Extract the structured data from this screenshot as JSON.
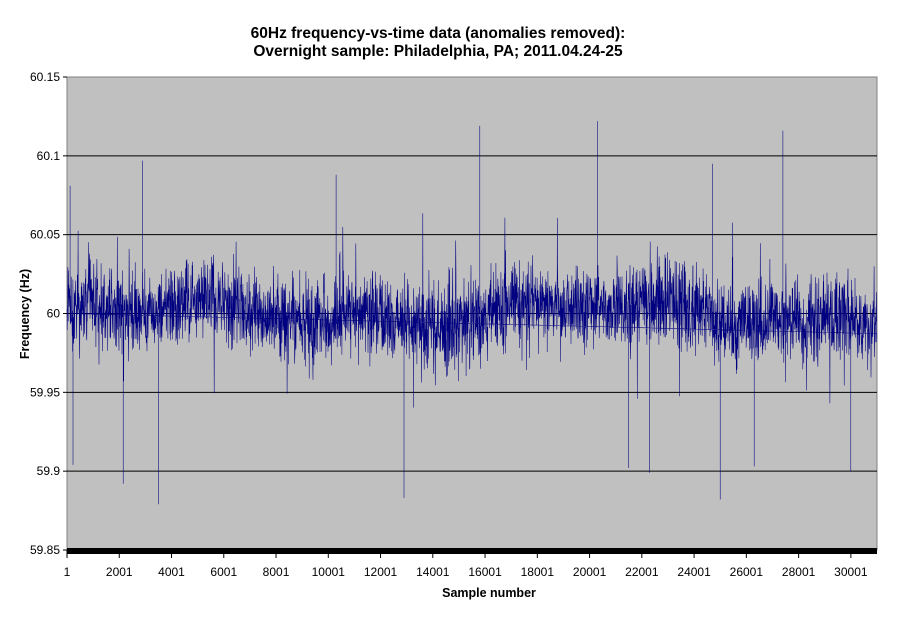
{
  "chart_data": {
    "type": "line",
    "title": "60Hz frequency-vs-time data (anomalies removed):",
    "subtitle": "Overnight sample: Philadelphia, PA; 2011.04.24-25",
    "xlabel": "Sample number",
    "ylabel": "Frequency (Hz)",
    "xlim": [
      1,
      31001
    ],
    "ylim": [
      59.85,
      60.15
    ],
    "x_ticks": [
      "1",
      "2001",
      "4001",
      "6001",
      "8001",
      "10001",
      "12001",
      "14001",
      "16001",
      "18001",
      "20001",
      "22001",
      "24001",
      "26001",
      "28001",
      "30001"
    ],
    "y_ticks": [
      "60.15",
      "60.1",
      "60.05",
      "60",
      "59.95",
      "59.9",
      "59.85"
    ],
    "grid": "horizontal",
    "legend": "none",
    "plot_background": "#c0c0c0",
    "line_color": "#000080",
    "series": [
      {
        "values": {
          "sample_count": 31000,
          "center": 60.0,
          "typical_band": [
            59.95,
            60.05
          ],
          "notable_extremes": [
            {
              "x": 120,
              "y": 60.081
            },
            {
              "x": 230,
              "y": 59.904
            },
            {
              "x": 2150,
              "y": 59.892
            },
            {
              "x": 2900,
              "y": 60.097
            },
            {
              "x": 3500,
              "y": 59.879
            },
            {
              "x": 10300,
              "y": 60.088
            },
            {
              "x": 12900,
              "y": 59.883
            },
            {
              "x": 15800,
              "y": 60.119
            },
            {
              "x": 20300,
              "y": 60.122
            },
            {
              "x": 21500,
              "y": 59.902
            },
            {
              "x": 22300,
              "y": 59.899
            },
            {
              "x": 24700,
              "y": 60.095
            },
            {
              "x": 25000,
              "y": 59.882
            },
            {
              "x": 26300,
              "y": 59.903
            },
            {
              "x": 27400,
              "y": 60.116
            },
            {
              "x": 30000,
              "y": 59.9
            }
          ]
        }
      }
    ]
  }
}
